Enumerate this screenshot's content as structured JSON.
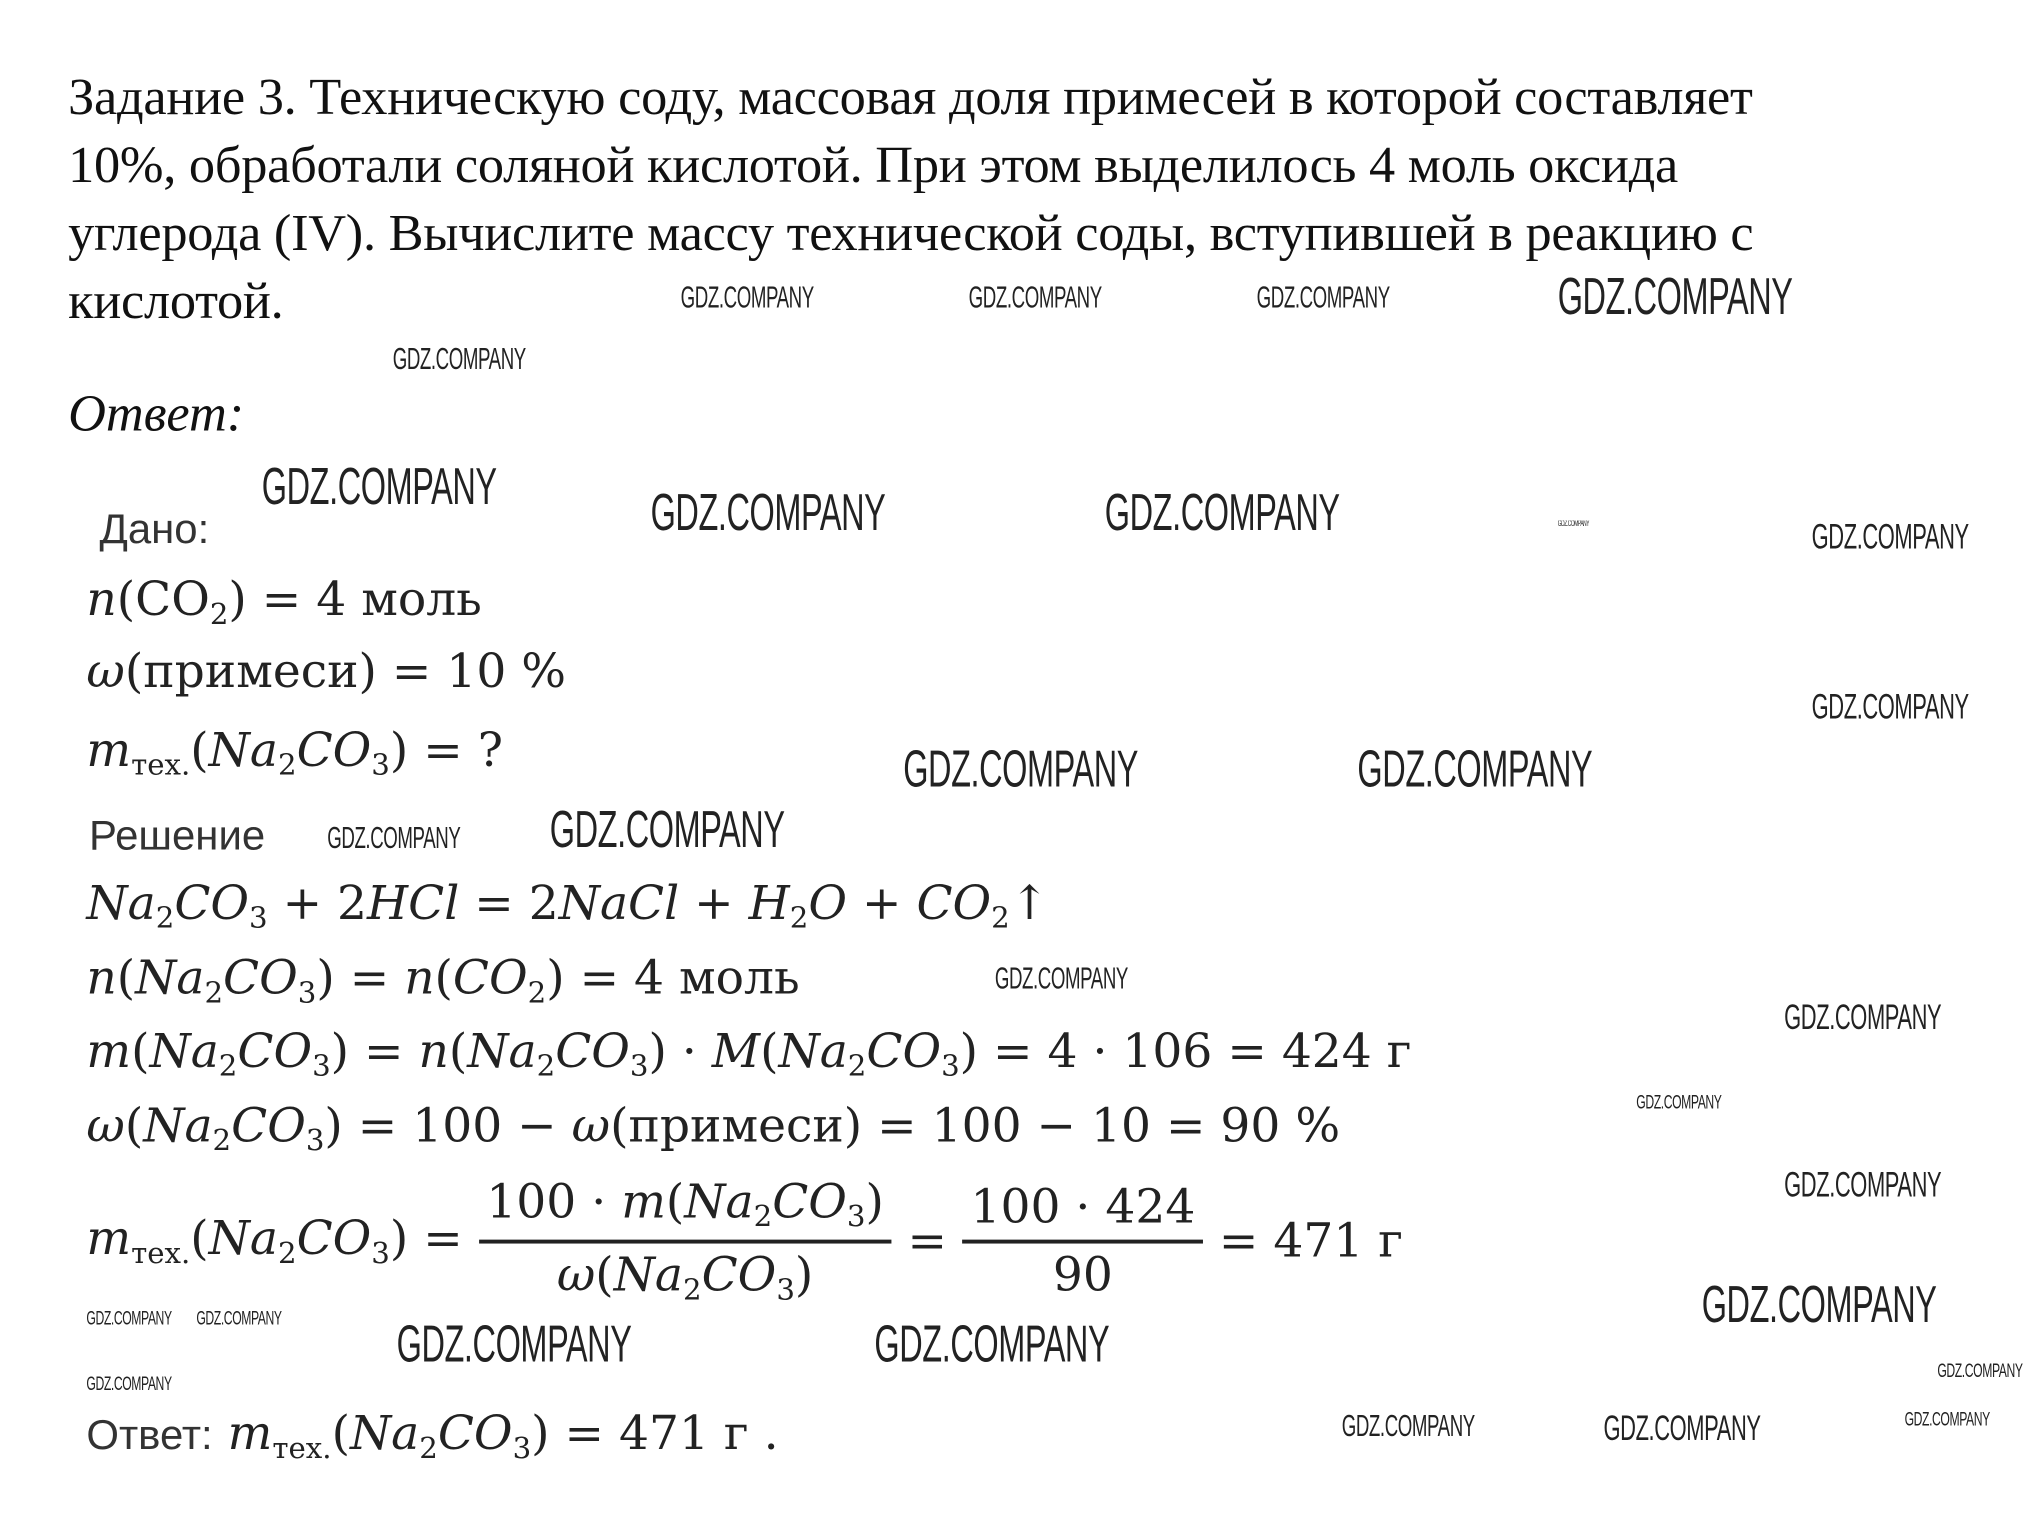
{
  "task": {
    "lines": [
      "Задание 3. Техническую соду, массовая доля примесей в которой составляет",
      "10%, обработали соляной кислотой. При этом выделилось 4 моль оксида",
      "углерода (IV). Вычислите массу технической соды, вступившей в реакцию с",
      "кислотой."
    ]
  },
  "answer_heading": "Ответ:",
  "given_label": "Дано:",
  "solution_label": "Решение",
  "math": {
    "given1": [
      [
        "n",
        "i"
      ],
      [
        "(",
        ""
      ],
      [
        "CO",
        ""
      ],
      [
        "2",
        "sub"
      ],
      [
        ") = 4 моль",
        ""
      ]
    ],
    "given2": [
      [
        "ω",
        "i"
      ],
      [
        "(примеси) = 10 %",
        ""
      ]
    ],
    "given3": [
      [
        "m",
        "i"
      ],
      [
        "тех.",
        "sub"
      ],
      [
        "(",
        ""
      ],
      [
        "Na",
        "i"
      ],
      [
        "2",
        "sub"
      ],
      [
        "CO",
        "i"
      ],
      [
        "3",
        "sub"
      ],
      [
        ") = ?",
        ""
      ]
    ],
    "eq": [
      [
        "Na",
        "i"
      ],
      [
        "2",
        "sub"
      ],
      [
        "CO",
        "i"
      ],
      [
        "3",
        "sub"
      ],
      [
        " + 2",
        ""
      ],
      [
        "HCl",
        "i"
      ],
      [
        " = 2",
        ""
      ],
      [
        "NaCl",
        "i"
      ],
      [
        " + ",
        ""
      ],
      [
        "H",
        "i"
      ],
      [
        "2",
        "sub"
      ],
      [
        "O",
        "i"
      ],
      [
        " + ",
        ""
      ],
      [
        "CO",
        "i"
      ],
      [
        "2",
        "sub"
      ],
      [
        "↑",
        ""
      ]
    ],
    "line1": [
      [
        "n",
        "i"
      ],
      [
        "(",
        ""
      ],
      [
        "Na",
        "i"
      ],
      [
        "2",
        "sub"
      ],
      [
        "CO",
        "i"
      ],
      [
        "3",
        "sub"
      ],
      [
        ") = ",
        ""
      ],
      [
        "n",
        "i"
      ],
      [
        "(",
        ""
      ],
      [
        "CO",
        "i"
      ],
      [
        "2",
        "sub"
      ],
      [
        ") = 4 моль",
        ""
      ]
    ],
    "line2": [
      [
        "m",
        "i"
      ],
      [
        "(",
        ""
      ],
      [
        "Na",
        "i"
      ],
      [
        "2",
        "sub"
      ],
      [
        "CO",
        "i"
      ],
      [
        "3",
        "sub"
      ],
      [
        ") = ",
        ""
      ],
      [
        "n",
        "i"
      ],
      [
        "(",
        ""
      ],
      [
        "Na",
        "i"
      ],
      [
        "2",
        "sub"
      ],
      [
        "CO",
        "i"
      ],
      [
        "3",
        "sub"
      ],
      [
        ") · ",
        ""
      ],
      [
        "M",
        "i"
      ],
      [
        "(",
        ""
      ],
      [
        "Na",
        "i"
      ],
      [
        "2",
        "sub"
      ],
      [
        "CO",
        "i"
      ],
      [
        "3",
        "sub"
      ],
      [
        ") = 4 · 106 = 424 г",
        ""
      ]
    ],
    "line3": [
      [
        "ω",
        "i"
      ],
      [
        "(",
        ""
      ],
      [
        "Na",
        "i"
      ],
      [
        "2",
        "sub"
      ],
      [
        "CO",
        "i"
      ],
      [
        "3",
        "sub"
      ],
      [
        ") = 100 − ",
        ""
      ],
      [
        "ω",
        "i"
      ],
      [
        "(примеси) = 100 − 10 = 90 %",
        ""
      ]
    ],
    "frac_lhs": [
      [
        "m",
        "i"
      ],
      [
        "тех.",
        "sub"
      ],
      [
        "(",
        ""
      ],
      [
        "Na",
        "i"
      ],
      [
        "2",
        "sub"
      ],
      [
        "CO",
        "i"
      ],
      [
        "3",
        "sub"
      ],
      [
        ") =",
        ""
      ]
    ],
    "frac1_num": [
      [
        "100 · ",
        ""
      ],
      [
        "m",
        "i"
      ],
      [
        "(",
        ""
      ],
      [
        "Na",
        "i"
      ],
      [
        "2",
        "sub"
      ],
      [
        "CO",
        "i"
      ],
      [
        "3",
        "sub"
      ],
      [
        ")",
        ""
      ]
    ],
    "frac1_den": [
      [
        "ω",
        "i"
      ],
      [
        "(",
        ""
      ],
      [
        "Na",
        "i"
      ],
      [
        "2",
        "sub"
      ],
      [
        "CO",
        "i"
      ],
      [
        "3",
        "sub"
      ],
      [
        ")",
        ""
      ]
    ],
    "frac2_num": [
      [
        "100 · 424",
        ""
      ]
    ],
    "frac2_den": [
      [
        "90",
        ""
      ]
    ],
    "frac_result": [
      [
        "= 471 г",
        ""
      ]
    ],
    "final": [
      [
        "m",
        "i"
      ],
      [
        "тех.",
        "sub"
      ],
      [
        "(",
        ""
      ],
      [
        "Na",
        "i"
      ],
      [
        "2",
        "sub"
      ],
      [
        "CO",
        "i"
      ],
      [
        "3",
        "sub"
      ],
      [
        ") = 471 г .",
        ""
      ]
    ]
  },
  "final_label": "Ответ:",
  "watermark": "GDZ.COMPANY"
}
